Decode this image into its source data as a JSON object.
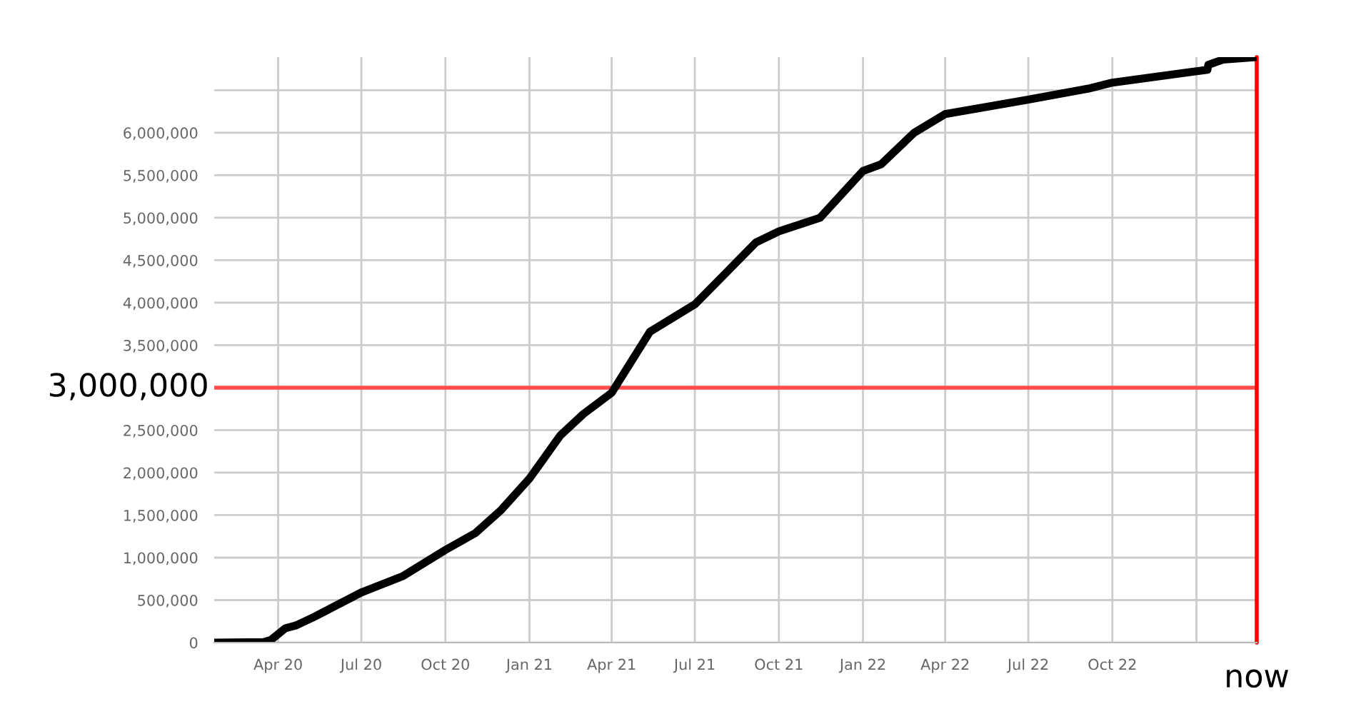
{
  "chart_data": {
    "type": "line",
    "x": [
      "2020-01-22",
      "2020-03-16",
      "2020-03-24",
      "2020-04-09",
      "2020-04-20",
      "2020-05-10",
      "2020-07-01",
      "2020-08-15",
      "2020-10-01",
      "2020-11-03",
      "2020-12-01",
      "2021-01-01",
      "2021-02-04",
      "2021-03-01",
      "2021-04-01",
      "2021-05-13",
      "2021-07-01",
      "2021-09-06",
      "2021-10-01",
      "2021-11-15",
      "2022-01-01",
      "2022-01-21",
      "2022-02-26",
      "2022-04-01",
      "2022-07-01",
      "2022-09-05",
      "2022-10-01",
      "2022-12-22",
      "2023-01-13",
      "2023-01-14",
      "2023-01-30",
      "2023-03-08"
    ],
    "series": [
      {
        "color": "#000000",
        "values": [
          0,
          5000,
          30000,
          170000,
          200000,
          300000,
          590000,
          780000,
          1090000,
          1290000,
          1560000,
          1930000,
          2440000,
          2690000,
          2940000,
          3660000,
          3980000,
          4710000,
          4840000,
          5000000,
          5550000,
          5630000,
          6000000,
          6220000,
          6390000,
          6520000,
          6590000,
          6710000,
          6740000,
          6800000,
          6860000,
          6890000
        ]
      }
    ],
    "xlim": [
      "2020-01-22",
      "2023-03-08"
    ],
    "xticks": [
      {
        "value": "2020-04-01",
        "label": "Apr 20"
      },
      {
        "value": "2020-07-01",
        "label": "Jul 20"
      },
      {
        "value": "2020-10-01",
        "label": "Oct 20"
      },
      {
        "value": "2021-01-01",
        "label": "Jan 21"
      },
      {
        "value": "2021-04-01",
        "label": "Apr 21"
      },
      {
        "value": "2021-07-01",
        "label": "Jul 21"
      },
      {
        "value": "2021-10-01",
        "label": "Oct 21"
      },
      {
        "value": "2022-01-01",
        "label": "Jan 22"
      },
      {
        "value": "2022-04-01",
        "label": "Apr 22"
      },
      {
        "value": "2022-07-01",
        "label": "Jul 22"
      },
      {
        "value": "2022-10-01",
        "label": "Oct 22"
      },
      {
        "value": "2023-01-01",
        "label": null
      }
    ],
    "ylim": [
      0,
      6890000
    ],
    "yticks": [
      {
        "value": 0,
        "label": "0"
      },
      {
        "value": 500000,
        "label": "500,000"
      },
      {
        "value": 1000000,
        "label": "1,000,000"
      },
      {
        "value": 1500000,
        "label": "1,500,000"
      },
      {
        "value": 2000000,
        "label": "2,000,000"
      },
      {
        "value": 2500000,
        "label": "2,500,000"
      },
      {
        "value": 3000000,
        "label": null
      },
      {
        "value": 3500000,
        "label": "3,500,000"
      },
      {
        "value": 4000000,
        "label": "4,000,000"
      },
      {
        "value": 4500000,
        "label": "4,500,000"
      },
      {
        "value": 5000000,
        "label": "5,000,000"
      },
      {
        "value": 5500000,
        "label": "5,500,000"
      },
      {
        "value": 6000000,
        "label": "6,000,000"
      },
      {
        "value": 6500000,
        "label": null
      }
    ],
    "grid": true,
    "ref_lines": [
      {
        "axis": "y",
        "value": 3000000,
        "label": "3,000,000",
        "color": "#ff4d4d"
      },
      {
        "axis": "x",
        "value": "2023-03-08",
        "label": "now",
        "color": "#ff0000"
      }
    ]
  }
}
